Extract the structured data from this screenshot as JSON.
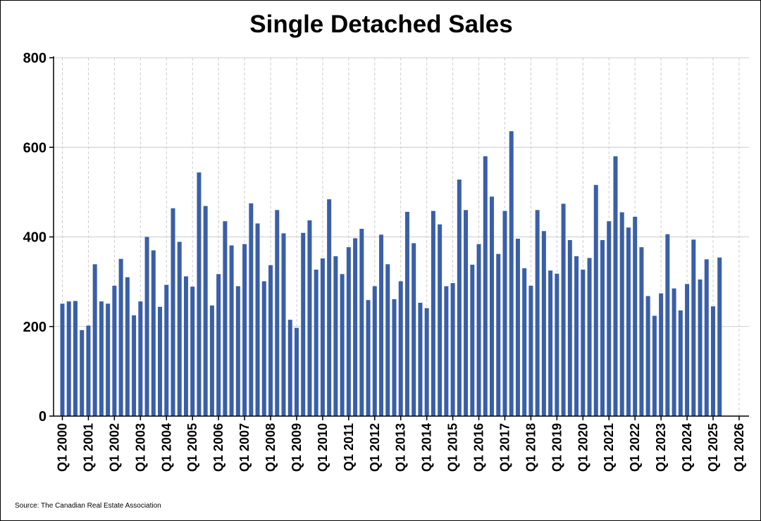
{
  "chart_data": {
    "type": "bar",
    "title": "Single Detached Sales",
    "source": "Source: The Canadian Real Estate Association",
    "xlabel": "",
    "ylabel": "",
    "ylim": [
      0,
      800
    ],
    "yticks": [
      0,
      200,
      400,
      600,
      800
    ],
    "xticks": [
      "Q1 2000",
      "Q1 2001",
      "Q1 2002",
      "Q1 2003",
      "Q1 2004",
      "Q1 2005",
      "Q1 2006",
      "Q1 2007",
      "Q1 2008",
      "Q1 2009",
      "Q1 2010",
      "Q1 2011",
      "Q1 2012",
      "Q1 2013",
      "Q1 2014",
      "Q1 2015",
      "Q1 2016",
      "Q1 2017",
      "Q1 2018",
      "Q1 2019",
      "Q1 2020",
      "Q1 2021",
      "Q1 2022",
      "Q1 2023",
      "Q1 2024",
      "Q1 2025",
      "Q1 2026"
    ],
    "grid": true,
    "bar_color": "#3a5fa8",
    "grid_color": "#cccccc",
    "categories": [
      "Q1 2000",
      "Q2 2000",
      "Q3 2000",
      "Q4 2000",
      "Q1 2001",
      "Q2 2001",
      "Q3 2001",
      "Q4 2001",
      "Q1 2002",
      "Q2 2002",
      "Q3 2002",
      "Q4 2002",
      "Q1 2003",
      "Q2 2003",
      "Q3 2003",
      "Q4 2003",
      "Q1 2004",
      "Q2 2004",
      "Q3 2004",
      "Q4 2004",
      "Q1 2005",
      "Q2 2005",
      "Q3 2005",
      "Q4 2005",
      "Q1 2006",
      "Q2 2006",
      "Q3 2006",
      "Q4 2006",
      "Q1 2007",
      "Q2 2007",
      "Q3 2007",
      "Q4 2007",
      "Q1 2008",
      "Q2 2008",
      "Q3 2008",
      "Q4 2008",
      "Q1 2009",
      "Q2 2009",
      "Q3 2009",
      "Q4 2009",
      "Q1 2010",
      "Q2 2010",
      "Q3 2010",
      "Q4 2010",
      "Q1 2011",
      "Q2 2011",
      "Q3 2011",
      "Q4 2011",
      "Q1 2012",
      "Q2 2012",
      "Q3 2012",
      "Q4 2012",
      "Q1 2013",
      "Q2 2013",
      "Q3 2013",
      "Q4 2013",
      "Q1 2014",
      "Q2 2014",
      "Q3 2014",
      "Q4 2014",
      "Q1 2015",
      "Q2 2015",
      "Q3 2015",
      "Q4 2015",
      "Q1 2016",
      "Q2 2016",
      "Q3 2016",
      "Q4 2016",
      "Q1 2017",
      "Q2 2017",
      "Q3 2017",
      "Q4 2017",
      "Q1 2018",
      "Q2 2018",
      "Q3 2018",
      "Q4 2018",
      "Q1 2019",
      "Q2 2019",
      "Q3 2019",
      "Q4 2019",
      "Q1 2020",
      "Q2 2020",
      "Q3 2020",
      "Q4 2020",
      "Q1 2021",
      "Q2 2021",
      "Q3 2021",
      "Q4 2021",
      "Q1 2022",
      "Q2 2022",
      "Q3 2022",
      "Q4 2022",
      "Q1 2023",
      "Q2 2023",
      "Q3 2023",
      "Q4 2023",
      "Q1 2024",
      "Q2 2024",
      "Q3 2024",
      "Q4 2024",
      "Q1 2025",
      "Q2 2025"
    ],
    "values": [
      251,
      256,
      257,
      192,
      202,
      339,
      256,
      251,
      291,
      351,
      310,
      225,
      256,
      400,
      370,
      244,
      293,
      464,
      389,
      312,
      289,
      544,
      469,
      247,
      317,
      435,
      381,
      290,
      384,
      475,
      430,
      301,
      337,
      460,
      408,
      215,
      197,
      409,
      437,
      327,
      352,
      484,
      357,
      317,
      377,
      397,
      418,
      259,
      290,
      405,
      339,
      261,
      301,
      456,
      386,
      253,
      241,
      458,
      428,
      290,
      297,
      528,
      460,
      338,
      384,
      580,
      490,
      362,
      458,
      636,
      396,
      330,
      291,
      460,
      413,
      325,
      318,
      474,
      393,
      357,
      327,
      353,
      516,
      393,
      435,
      580,
      455,
      421,
      445,
      377,
      268,
      224,
      274,
      406,
      285,
      236,
      295,
      394,
      305,
      350,
      245,
      354
    ]
  }
}
